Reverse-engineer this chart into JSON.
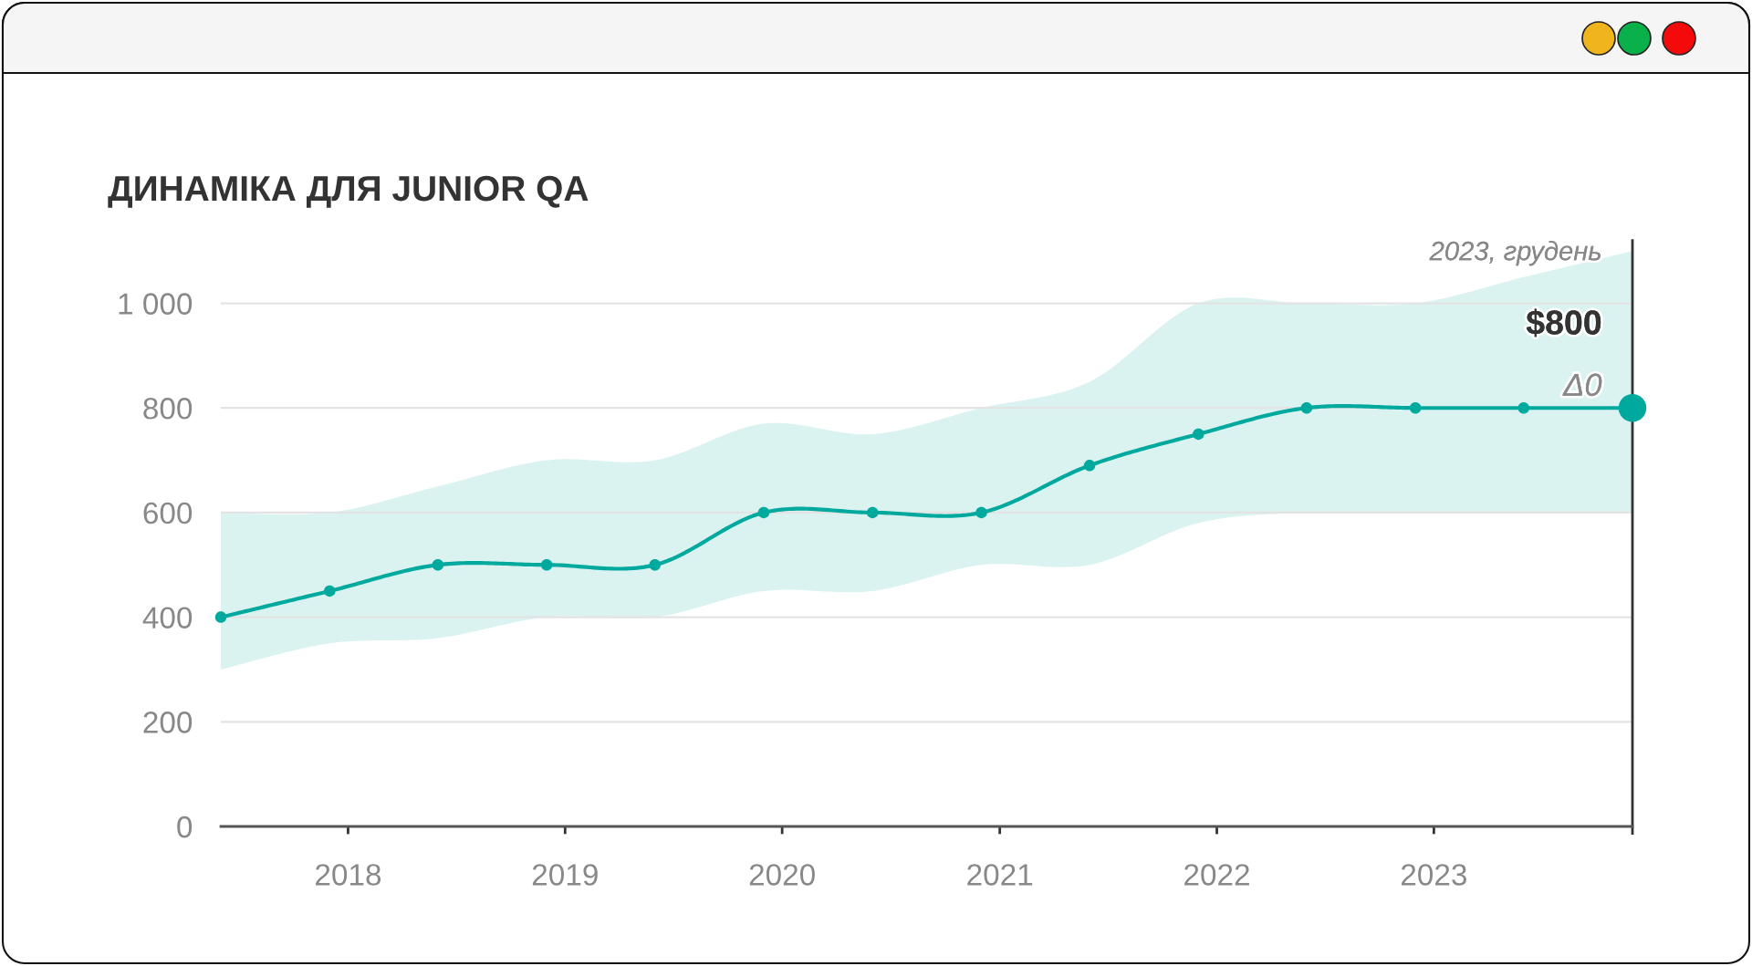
{
  "chart_data": {
    "type": "line",
    "title": "ДИНАМІКА ДЛЯ JUNIOR QA",
    "x": [
      "2017-06",
      "2017-12",
      "2018-06",
      "2018-12",
      "2019-06",
      "2019-12",
      "2020-06",
      "2020-12",
      "2021-06",
      "2021-12",
      "2022-06",
      "2022-12",
      "2023-06",
      "2023-12"
    ],
    "series": [
      {
        "color": "#00a99d",
        "values": [
          400,
          450,
          500,
          500,
          500,
          600,
          600,
          600,
          690,
          750,
          800,
          800,
          800,
          800
        ],
        "lower": [
          300,
          350,
          360,
          400,
          400,
          450,
          450,
          500,
          500,
          580,
          600,
          600,
          600,
          600
        ],
        "upper": [
          600,
          600,
          650,
          700,
          700,
          770,
          750,
          800,
          850,
          1000,
          1000,
          1000,
          1050,
          1100
        ]
      },
      {
        "type": "scatter",
        "x": [
          "2023-12"
        ],
        "values": [
          800
        ],
        "color": "#00a99d"
      }
    ],
    "xlim": [
      "2017-06",
      "2023-12"
    ],
    "xticks": [
      "2018",
      "2019",
      "2020",
      "2021",
      "2022",
      "2023"
    ],
    "ylim": [
      0,
      1120
    ],
    "yticks": [
      0,
      200,
      400,
      600,
      800,
      {
        "value": 1000,
        "label": "1 000"
      }
    ],
    "grid": "y",
    "marker": "circle",
    "line_style": "solid",
    "ref_lines": [
      {
        "axis": "x",
        "value": "2023-12",
        "color": "#333333"
      }
    ],
    "annotations": [
      "2023, грудень",
      "$800",
      "Δ0"
    ]
  }
}
